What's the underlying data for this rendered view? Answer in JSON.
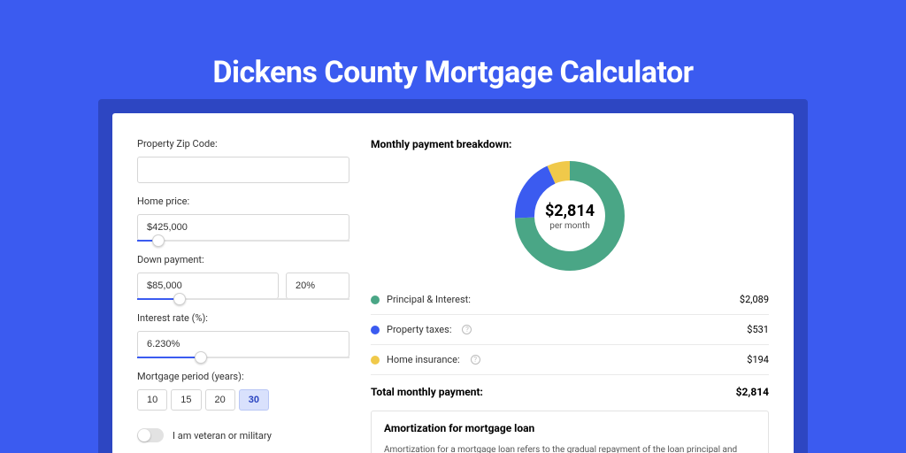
{
  "colors": {
    "page_bg": "#3b5bf0",
    "shadow_bg": "#2d46c2",
    "card_bg": "#ffffff",
    "input_border": "#d6d6d6",
    "slider_track": "#e2e2e2",
    "slider_fill": "#3b5bf0",
    "divider": "#eaeaea"
  },
  "title": "Dickens County Mortgage Calculator",
  "form": {
    "zip": {
      "label": "Property Zip Code:",
      "value": ""
    },
    "home_price": {
      "label": "Home price:",
      "value": "$425,000",
      "slider_pct": 10
    },
    "down_payment": {
      "label": "Down payment:",
      "amount": "$85,000",
      "pct": "20%",
      "slider_pct": 20
    },
    "interest_rate": {
      "label": "Interest rate (%):",
      "value": "6.230%",
      "slider_pct": 30
    },
    "period": {
      "label": "Mortgage period (years):",
      "options": [
        "10",
        "15",
        "20",
        "30"
      ],
      "selected": "30"
    },
    "veteran": {
      "label": "I am veteran or military",
      "checked": false
    }
  },
  "breakdown": {
    "title": "Monthly payment breakdown:",
    "donut": {
      "amount": "$2,814",
      "sub": "per month",
      "size": 124,
      "ring_width": 22,
      "segments": [
        {
          "key": "principal_interest",
          "color": "#4aa686",
          "value": 2089
        },
        {
          "key": "property_taxes",
          "color": "#3b5bf0",
          "value": 531
        },
        {
          "key": "home_insurance",
          "color": "#f0c94a",
          "value": 194
        }
      ]
    },
    "items": [
      {
        "label": "Principal & Interest:",
        "value": "$2,089",
        "color": "#4aa686",
        "info": false
      },
      {
        "label": "Property taxes:",
        "value": "$531",
        "color": "#3b5bf0",
        "info": true
      },
      {
        "label": "Home insurance:",
        "value": "$194",
        "color": "#f0c94a",
        "info": true
      }
    ],
    "total": {
      "label": "Total monthly payment:",
      "value": "$2,814"
    }
  },
  "amortization": {
    "title": "Amortization for mortgage loan",
    "text": "Amortization for a mortgage loan refers to the gradual repayment of the loan principal and interest over a specified"
  }
}
